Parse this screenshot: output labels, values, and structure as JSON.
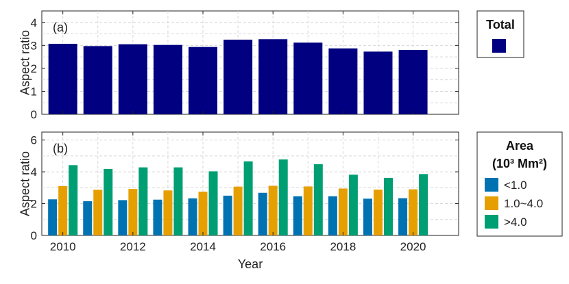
{
  "chart_data": [
    {
      "type": "bar",
      "panel_label": "(a)",
      "categories": [
        "2010",
        "2011",
        "2012",
        "2013",
        "2014",
        "2015",
        "2016",
        "2017",
        "2018",
        "2019",
        "2020"
      ],
      "series": [
        {
          "name": "Total",
          "color": "#000080",
          "values": [
            3.07,
            2.97,
            3.05,
            3.02,
            2.93,
            3.25,
            3.27,
            3.12,
            2.87,
            2.73,
            2.8
          ]
        }
      ],
      "ylabel": "Aspect ratio",
      "ylim": [
        0,
        4.5
      ],
      "yticks": [
        "0",
        "1",
        "2",
        "3",
        "4"
      ],
      "grid": true,
      "legend": {
        "title": "Total",
        "placement": "right"
      }
    },
    {
      "type": "bar",
      "panel_label": "(b)",
      "categories": [
        "2010",
        "2011",
        "2012",
        "2013",
        "2014",
        "2015",
        "2016",
        "2017",
        "2018",
        "2019",
        "2020"
      ],
      "series": [
        {
          "name": "<1.0",
          "color": "#0072B2",
          "values": [
            2.27,
            2.15,
            2.22,
            2.25,
            2.33,
            2.5,
            2.68,
            2.46,
            2.46,
            2.31,
            2.34
          ]
        },
        {
          "name": "1.0~4.0",
          "color": "#E69F00",
          "values": [
            3.1,
            2.87,
            2.92,
            2.83,
            2.75,
            3.07,
            3.12,
            3.08,
            2.95,
            2.88,
            2.9
          ]
        },
        {
          "name": ">4.0",
          "color": "#009E73",
          "values": [
            4.42,
            4.18,
            4.28,
            4.28,
            4.03,
            4.66,
            4.78,
            4.48,
            3.82,
            3.62,
            3.86
          ]
        }
      ],
      "xlabel": "Year",
      "ylabel": "Aspect ratio",
      "ylim": [
        0,
        6.5
      ],
      "yticks": [
        "0",
        "2",
        "4",
        "6"
      ],
      "xticks": [
        "2010",
        "2012",
        "2014",
        "2016",
        "2018",
        "2020"
      ],
      "grid": true,
      "legend": {
        "title_line1": "Area",
        "title_line2": "(10³ Mm²)",
        "placement": "right"
      }
    }
  ]
}
